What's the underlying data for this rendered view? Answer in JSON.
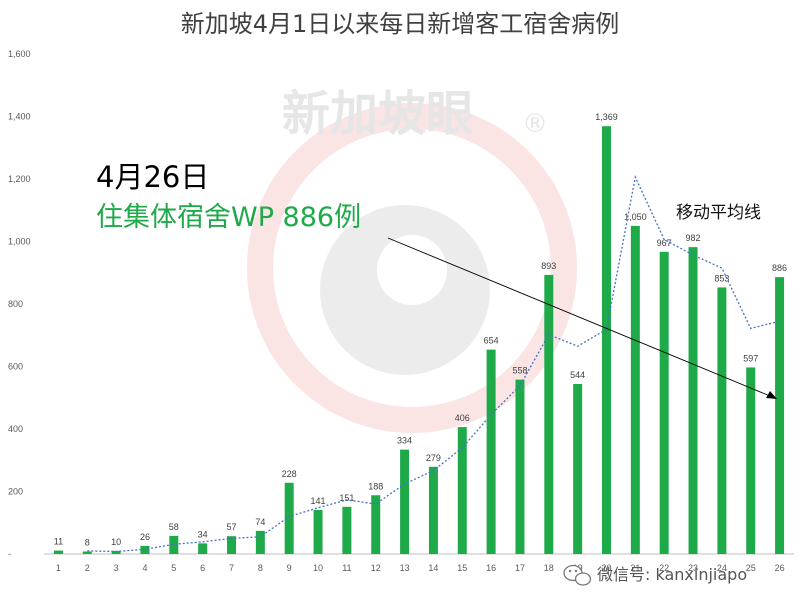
{
  "chart_data": {
    "type": "bar",
    "title": "新加坡4月1日以来每日新增客工宿舍病例",
    "categories": [
      "1",
      "2",
      "3",
      "4",
      "5",
      "6",
      "7",
      "8",
      "9",
      "10",
      "11",
      "12",
      "13",
      "14",
      "15",
      "16",
      "17",
      "18",
      "19",
      "20",
      "21",
      "22",
      "23",
      "24",
      "25",
      "26"
    ],
    "values": [
      11,
      8,
      10,
      26,
      58,
      34,
      57,
      74,
      228,
      141,
      151,
      188,
      334,
      279,
      406,
      654,
      558,
      893,
      544,
      1369,
      1050,
      967,
      982,
      853,
      597,
      886
    ],
    "data_labels": [
      "11",
      "8",
      "10",
      "26",
      "58",
      "34",
      "57",
      "74",
      "228",
      "141",
      "151",
      "188",
      "334",
      "279",
      "406",
      "654",
      "558",
      "893",
      "544",
      "1,369",
      "1,050",
      "967",
      "982",
      "853",
      "597",
      "886"
    ],
    "moving_average": {
      "name": "移动平均线",
      "values": [
        null,
        10,
        8,
        15,
        31,
        39,
        50,
        55,
        120,
        148,
        173,
        160,
        224,
        267,
        340,
        446,
        539,
        702,
        665,
        719,
        1206,
        1006,
        957,
        915,
        722,
        745
      ]
    },
    "ylim": [
      0,
      1600
    ],
    "y_ticks": [
      "-",
      "200",
      "400",
      "600",
      "800",
      "1,000",
      "1,200",
      "1,400",
      "1,600"
    ],
    "grid": false,
    "bar_color": "#1faa4a",
    "line_color": "#4472c4",
    "annotation": {
      "date": "4月26日",
      "text": "住集体宿舍WP 886例",
      "target_category": "26"
    }
  },
  "watermark": {
    "text": "新加坡眼",
    "mark": "®"
  },
  "source_badge": {
    "icon": "wechat-icon",
    "text": "微信号: kanxinjiapo"
  }
}
